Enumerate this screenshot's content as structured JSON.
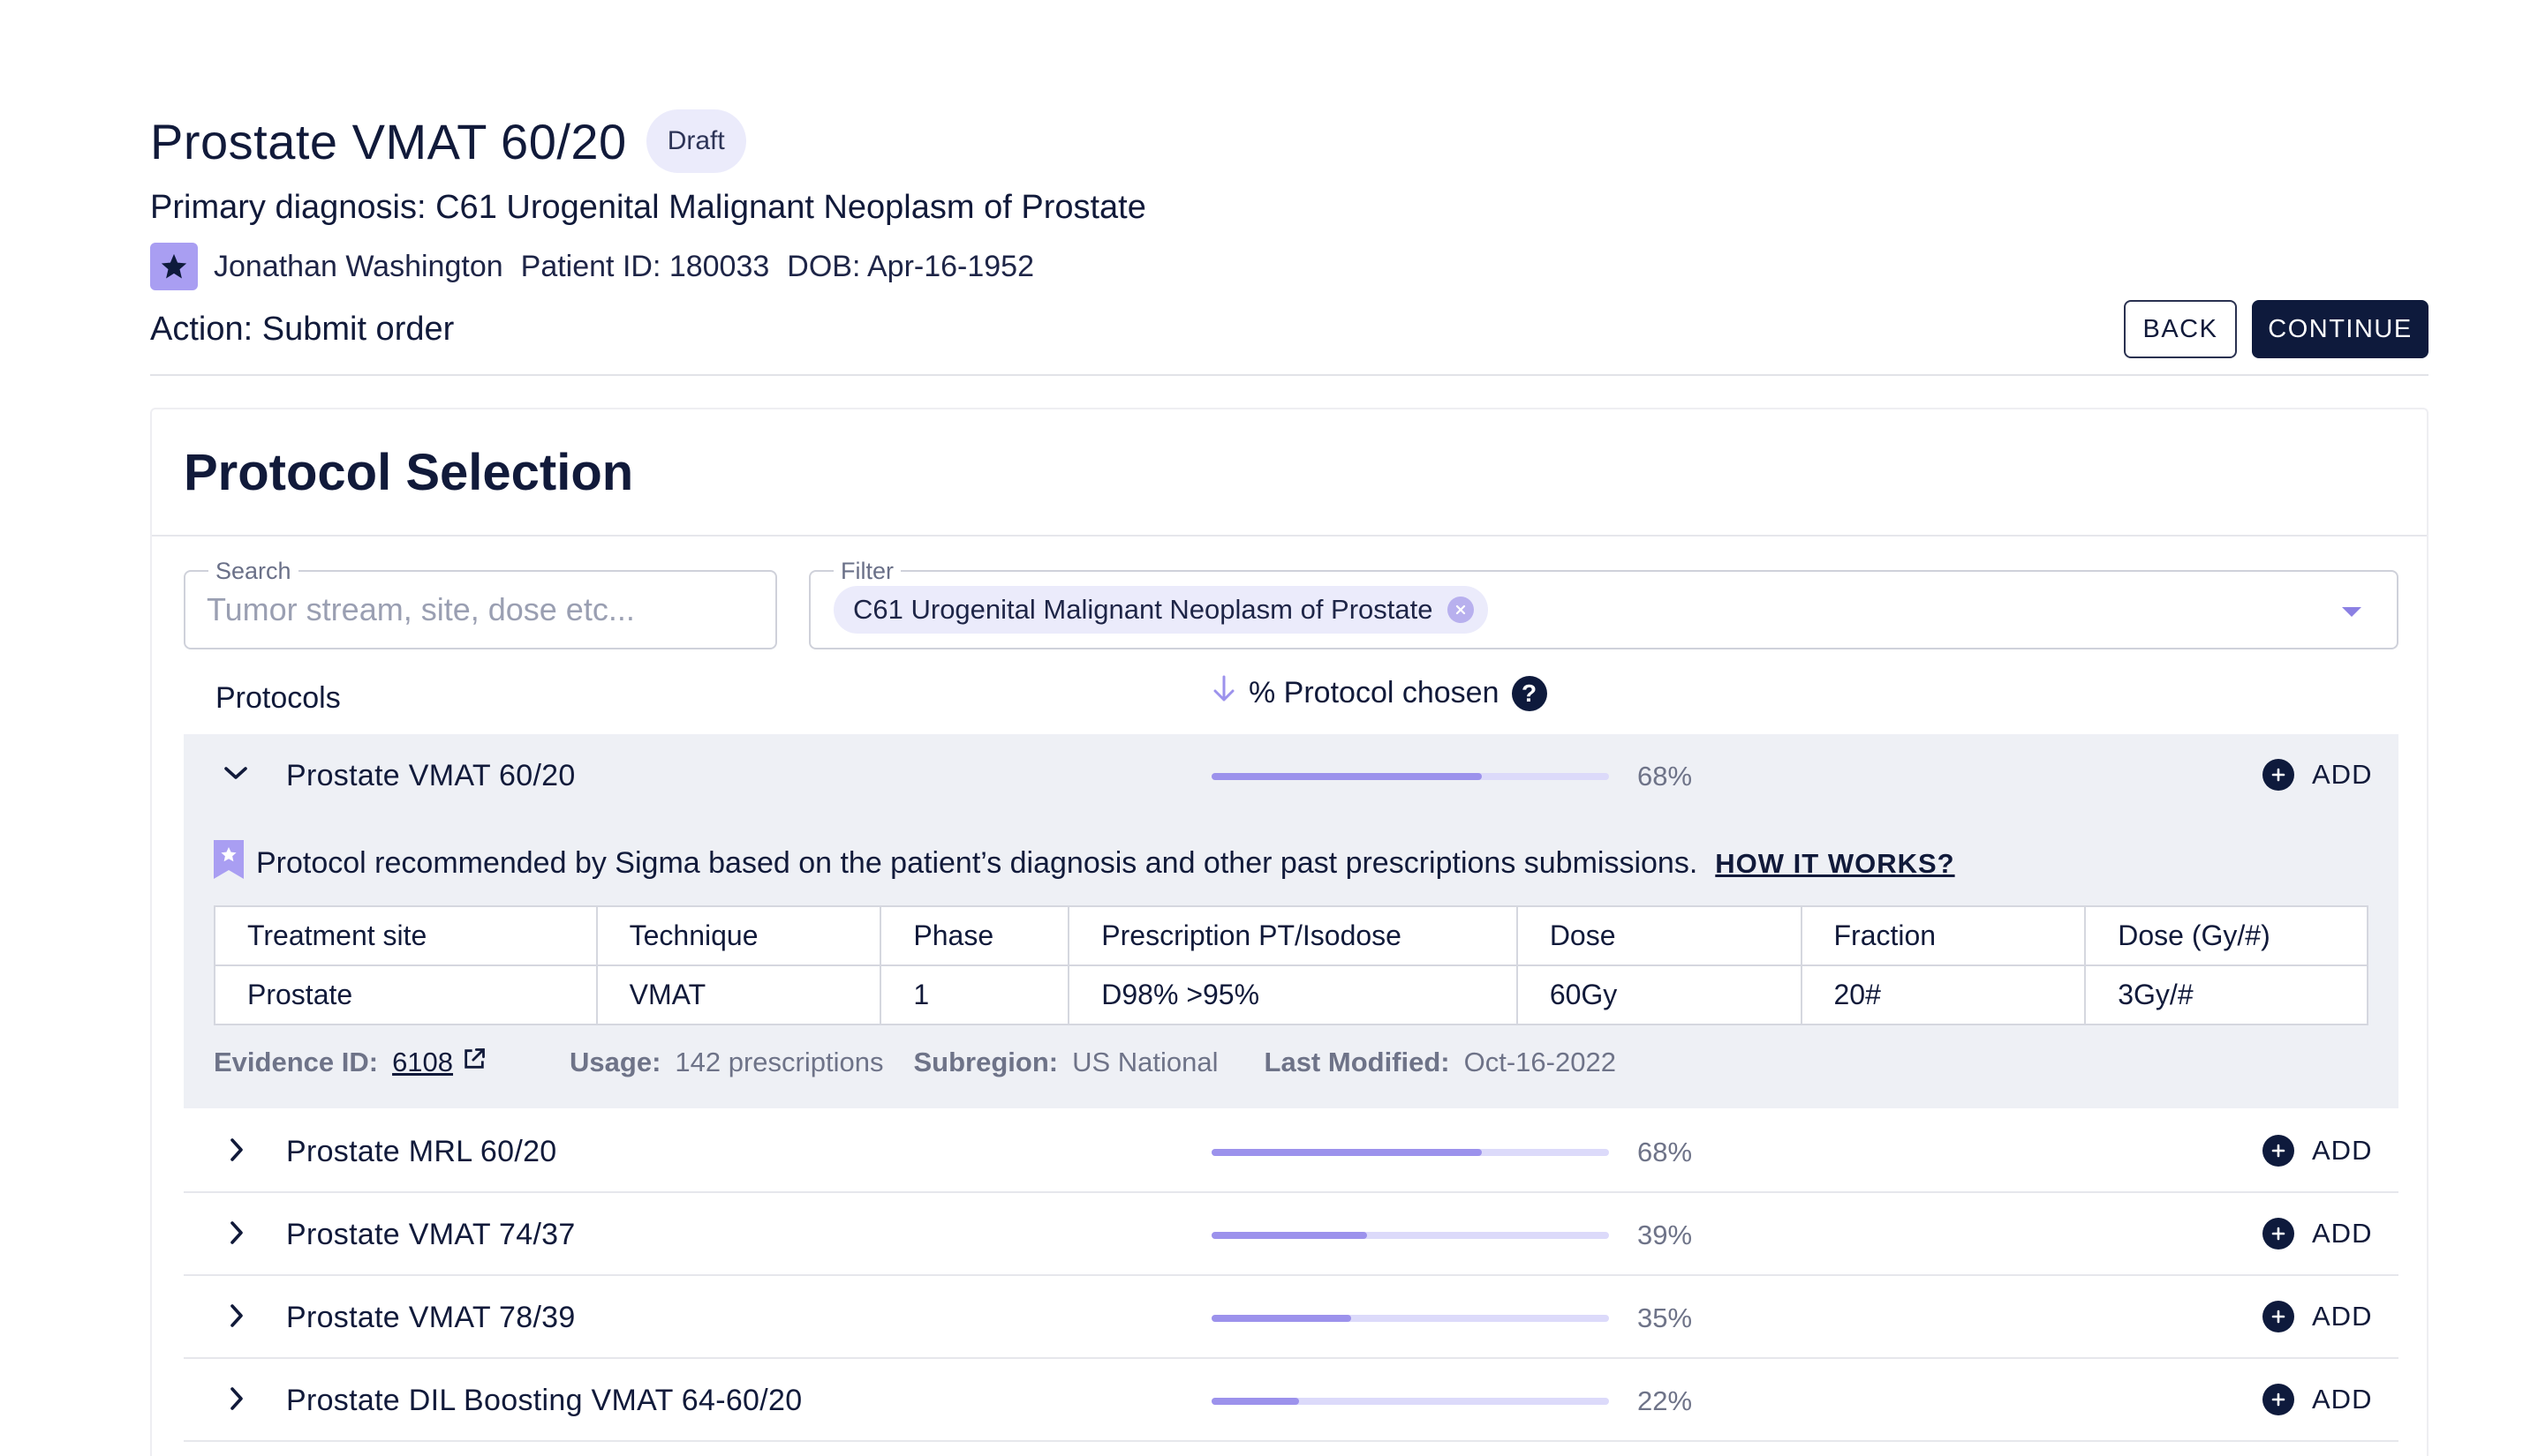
{
  "header": {
    "title": "Prostate VMAT 60/20",
    "badge": "Draft",
    "diagnosis": "Primary diagnosis: C61 Urogenital Malignant Neoplasm of Prostate",
    "patient_name": "Jonathan Washington",
    "patient_id": "Patient ID: 180033",
    "dob": "DOB: Apr-16-1952",
    "action": "Action: Submit order",
    "back_label": "BACK",
    "continue_label": "CONTINUE"
  },
  "card": {
    "title": "Protocol Selection",
    "search": {
      "label": "Search",
      "placeholder": "Tumor stream, site, dose etc...",
      "value": ""
    },
    "filter": {
      "label": "Filter",
      "chip": "C61 Urogenital Malignant Neoplasm of Prostate"
    },
    "columns": {
      "protocols": "Protocols",
      "chosen": "% Protocol chosen"
    },
    "add_label": "ADD"
  },
  "expanded": {
    "name": "Prostate VMAT 60/20",
    "percent": 68,
    "percent_label": "68%",
    "recommendation": "Protocol recommended by Sigma based on the patient’s diagnosis and other past prescriptions submissions.",
    "how_link": "HOW IT WORKS?",
    "table": {
      "headers": [
        "Treatment site",
        "Technique",
        "Phase",
        "Prescription PT/Isodose",
        "Dose",
        "Fraction",
        "Dose (Gy/#)"
      ],
      "row": [
        "Prostate",
        "VMAT",
        "1",
        "D98% >95%",
        "60Gy",
        "20#",
        "3Gy/#"
      ]
    },
    "meta": {
      "evidence_key": "Evidence ID:",
      "evidence_value": "6108",
      "usage_key": "Usage:",
      "usage_value": "142 prescriptions",
      "subregion_key": "Subregion:",
      "subregion_value": "US National",
      "modified_key": "Last Modified:",
      "modified_value": "Oct-16-2022"
    }
  },
  "protocols": [
    {
      "name": "Prostate MRL 60/20",
      "percent": 68,
      "percent_label": "68%"
    },
    {
      "name": "Prostate VMAT 74/37",
      "percent": 39,
      "percent_label": "39%"
    },
    {
      "name": "Prostate VMAT 78/39",
      "percent": 35,
      "percent_label": "35%"
    },
    {
      "name": "Prostate DIL Boosting VMAT 64-60/20",
      "percent": 22,
      "percent_label": "22%"
    }
  ],
  "colors": {
    "accent": "#9c92ec",
    "track": "#dcdafa",
    "navy": "#0e1a3c",
    "badge_bg": "#ebebfb"
  }
}
